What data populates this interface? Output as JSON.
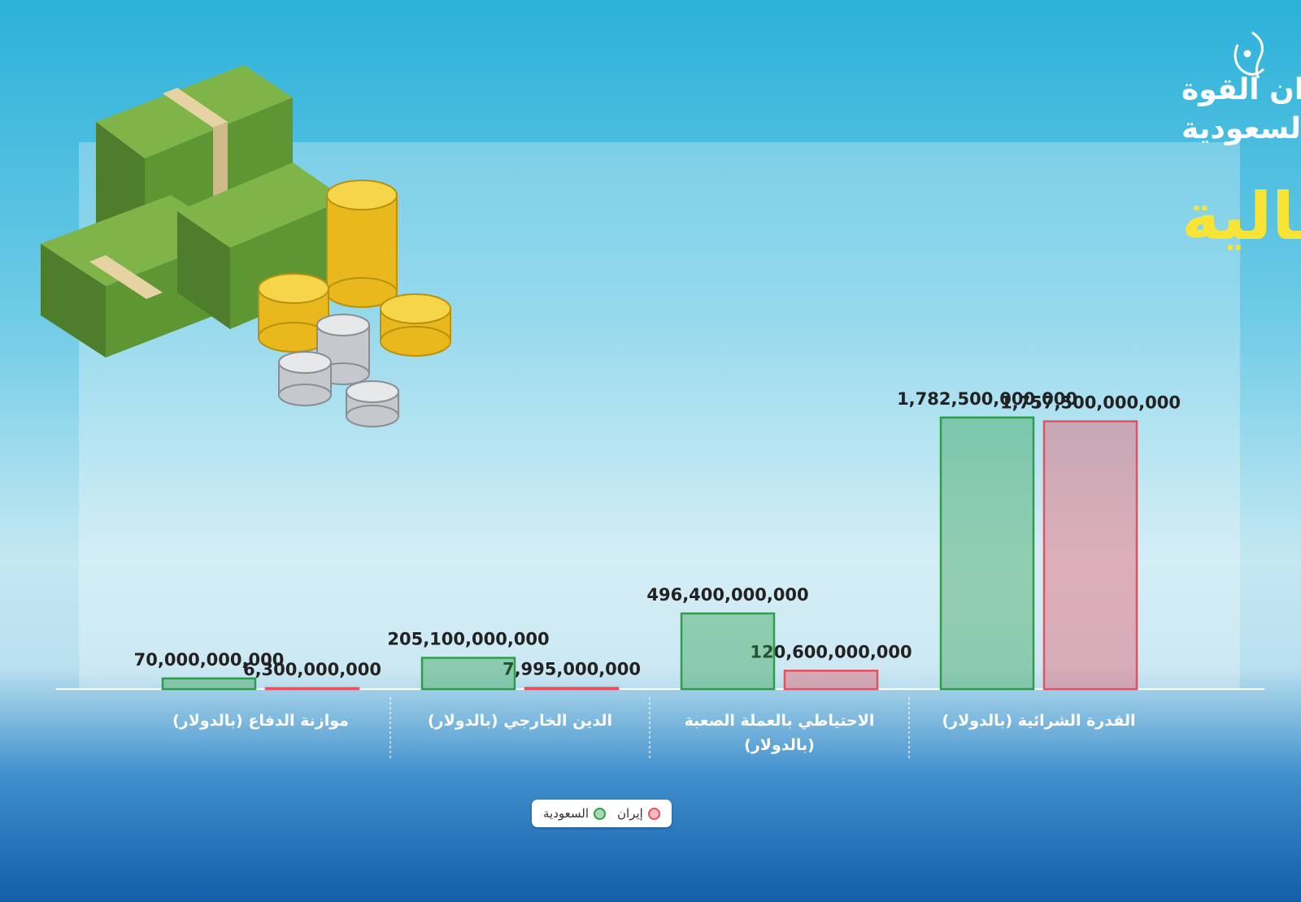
{
  "chart_data": {
    "type": "bar",
    "title": "القدرات المالية",
    "supertitle": [
      "ميزان القوة",
      "بين إيران والسعودية"
    ],
    "categories": [
      "موازنة الدفاع (بالدولار)",
      "الدين الخارجي (بالدولار)",
      "الاحتياطي بالعملة الصعبة (بالدولار)",
      "القدرة الشرائية (بالدولار)"
    ],
    "series": [
      {
        "name": "إيران",
        "color": "#e8505f",
        "values": [
          6300000000,
          7995000000,
          120600000000,
          1757500000000
        ],
        "value_labels": [
          "6,300,000,000",
          "7,995,000,000",
          "120,600,000,000",
          "1,757,500,000,000"
        ]
      },
      {
        "name": "السعودية",
        "color": "#2e9e4a",
        "values": [
          70000000000,
          205100000000,
          496400000000,
          1782500000000
        ],
        "value_labels": [
          "70,000,000,000",
          "205,100,000,000",
          "496,400,000,000",
          "1,782,500,000,000"
        ]
      }
    ],
    "ylim": [
      0,
      2000000000000
    ]
  }
}
